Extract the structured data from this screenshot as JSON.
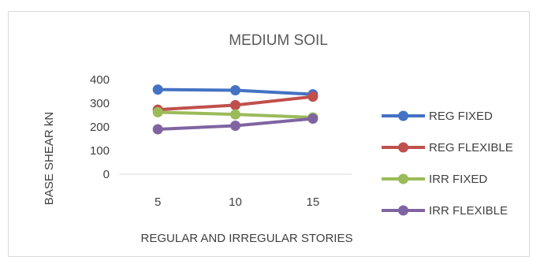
{
  "chart_data": {
    "type": "line",
    "title": "MEDIUM SOIL",
    "xlabel": "REGULAR AND IRREGULAR STORIES",
    "ylabel": "BASE SHEAR kN",
    "categories": [
      "5",
      "10",
      "15"
    ],
    "ylim": [
      0,
      400
    ],
    "yticks": [
      0,
      100,
      200,
      300,
      400
    ],
    "grid": false,
    "legend_position": "right",
    "series": [
      {
        "name": "REG FIXED",
        "color": "#4472c4",
        "values": [
          358,
          355,
          338
        ]
      },
      {
        "name": "REG FLEXIBLE",
        "color": "#c0504d",
        "values": [
          273,
          292,
          328
        ]
      },
      {
        "name": "IRR FIXED",
        "color": "#9bbb59",
        "values": [
          262,
          253,
          240
        ]
      },
      {
        "name": "IRR FLEXIBLE",
        "color": "#8064a2",
        "values": [
          190,
          205,
          235
        ]
      }
    ]
  }
}
